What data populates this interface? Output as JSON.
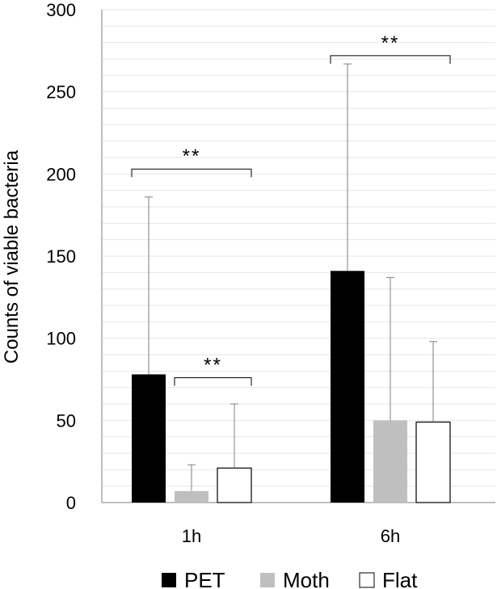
{
  "chart_data": {
    "type": "bar",
    "title": "",
    "xlabel": "",
    "ylabel": "Counts of viable bacteria",
    "ylim": [
      0,
      300
    ],
    "yticks": [
      0,
      50,
      100,
      150,
      200,
      250,
      300
    ],
    "grid": true,
    "categories": [
      "1h",
      "6h"
    ],
    "series": [
      {
        "name": "PET",
        "color": "#000000",
        "fill": "solid",
        "values": [
          78,
          141
        ],
        "errors": [
          108,
          126
        ]
      },
      {
        "name": "Moth",
        "color": "#bfbfbf",
        "fill": "solid",
        "values": [
          7,
          50
        ],
        "errors": [
          16,
          87
        ]
      },
      {
        "name": "Flat",
        "color": "#ffffff",
        "fill": "outline",
        "values": [
          21,
          49
        ],
        "errors": [
          39,
          49
        ]
      }
    ],
    "legend_position": "bottom",
    "significance": [
      {
        "category": "1h",
        "from_series": "PET",
        "to_series": "Flat",
        "label": "**",
        "at_value": 203
      },
      {
        "category": "1h",
        "from_series": "Moth",
        "to_series": "Flat",
        "label": "**",
        "at_value": 76
      },
      {
        "category": "6h",
        "from_series": "PET",
        "to_series": "Flat",
        "label": "**",
        "at_value": 272
      }
    ]
  }
}
